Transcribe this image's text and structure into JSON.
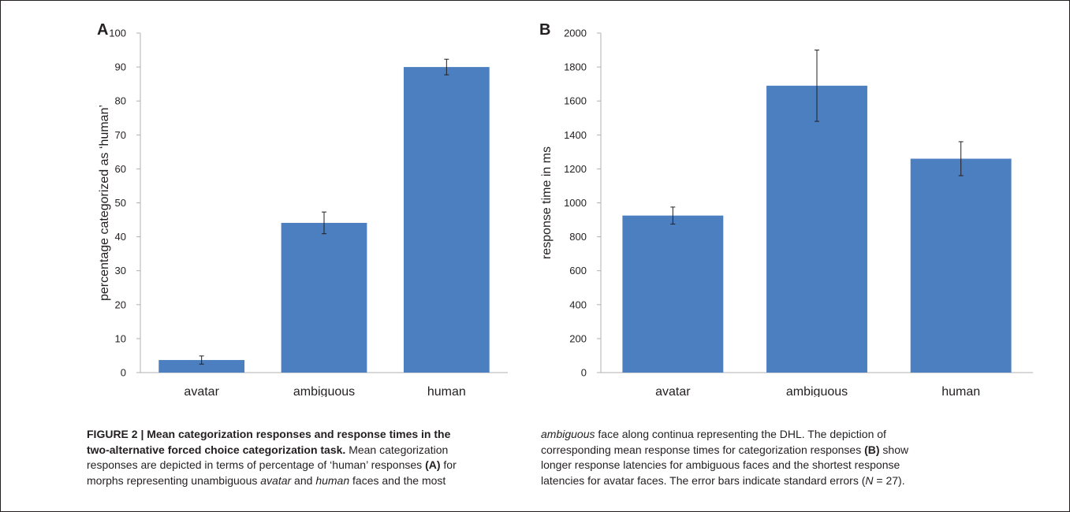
{
  "colors": {
    "bar": "#4b7fc0",
    "axis": "#b0b0b0",
    "error": "#231f20",
    "text": "#231f20"
  },
  "chart_data": [
    {
      "type": "bar",
      "panel_label": "A",
      "categories": [
        "avatar",
        "ambiguous",
        "human"
      ],
      "values": [
        3.7,
        44.1,
        90.0
      ],
      "errors": [
        1.2,
        3.2,
        2.3
      ],
      "ylabel": "percentage categorized as ‘human’",
      "xlabel": "",
      "ylim": [
        0,
        100
      ],
      "yticks": [
        "0",
        "10",
        "20",
        "30",
        "40",
        "50",
        "60",
        "70",
        "80",
        "90",
        "100"
      ],
      "grid": false,
      "legend": "none"
    },
    {
      "type": "bar",
      "panel_label": "B",
      "categories": [
        "avatar",
        "ambiguous",
        "human"
      ],
      "values": [
        925,
        1690,
        1260
      ],
      "errors": [
        50,
        210,
        100
      ],
      "ylabel": "response time in ms",
      "xlabel": "",
      "ylim": [
        0,
        2000
      ],
      "yticks": [
        "0",
        "200",
        "400",
        "600",
        "800",
        "1000",
        "1200",
        "1400",
        "1600",
        "1800",
        "2000"
      ],
      "grid": false,
      "legend": "none"
    }
  ],
  "caption": {
    "label": "FIGURE 2 | Mean categorization responses and response times in the",
    "label_cont": "two-alternative forced choice categorization task.",
    "l2_rest": " Mean categorization",
    "l3_a": "responses are depicted in terms of percentage of ‘human’ responses ",
    "l3_ref": "(A)",
    "l3_b": " for",
    "l4_a": "morphs representing unambiguous ",
    "l4_avatar": "avatar",
    "l4_and": " and ",
    "l4_human": "human",
    "l4_b": " faces and the most",
    "r1_amb": "ambiguous",
    "r1_b": " face along continua representing the DHL. The depiction of",
    "r2_a": "corresponding mean response times for categorization responses ",
    "r2_ref": "(B)",
    "r2_b": " show",
    "r3": "longer response latencies for ambiguous faces and the shortest response",
    "r4_a": "latencies for avatar faces. The error bars indicate standard errors (",
    "r4_n": "N",
    "r4_b": " = 27)."
  }
}
